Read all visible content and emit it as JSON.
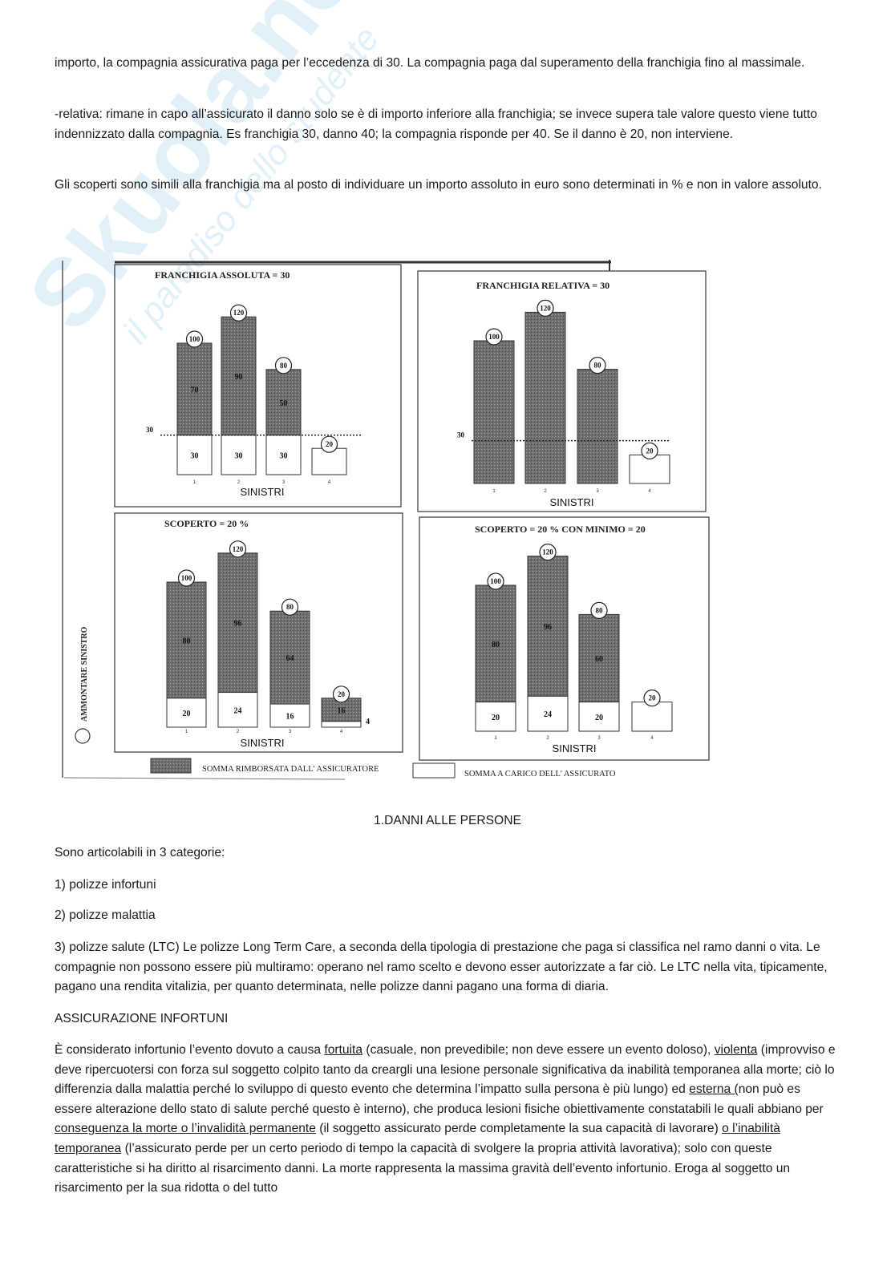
{
  "watermark": {
    "logo": "Skuola.net",
    "tagline": "il paradiso dello studente"
  },
  "paragraphs": {
    "p1": "importo, la compagnia assicurativa paga per l’eccedenza di 30. La compagnia paga dal superamento della franchigia fino al massimale.",
    "p2": "-relativa: rimane in capo all’assicurato il danno solo se è di importo inferiore alla franchigia; se invece supera tale valore questo viene tutto indennizzato dalla compagnia. Es franchigia 30, danno 40; la compagnia risponde per 40. Se il danno è 20, non interviene.",
    "p3": "Gli scoperti sono simili alla franchigia ma al posto di individuare un importo assoluto in euro sono determinati in % e non in valore assoluto.",
    "heading": "1.DANNI ALLE PERSONE",
    "p4": "Sono articolabili in 3 categorie:",
    "p5": "1) polizze infortuni",
    "p6": "2) polizze malattia",
    "p7": "3) polizze salute (LTC) Le polizze Long Term Care, a seconda della tipologia di prestazione che paga si classifica nel ramo danni o vita. Le compagnie non possono essere più multiramo: operano nel ramo scelto e devono esser autorizzate a far ciò. Le LTC nella vita, tipicamente, pagano una rendita vitalizia, per quanto determinata, nelle polizze danni pagano una forma di diaria.",
    "p8": "ASSICURAZIONE INFORTUNI",
    "p9": [
      {
        "t": "È considerato infortunio l’evento dovuto a causa ",
        "u": false
      },
      {
        "t": "fortuita",
        "u": true
      },
      {
        "t": " (casuale, non prevedibile; non deve essere un evento doloso), ",
        "u": false
      },
      {
        "t": "violenta",
        "u": true
      },
      {
        "t": " (improvviso e deve ripercuotersi con forza sul soggetto colpito tanto da creargli una lesione personale significativa da inabilità temporanea alla morte; ciò lo differenzia dalla malattia perché lo sviluppo di questo evento che determina l’impatto sulla persona è più lungo) ed ",
        "u": false
      },
      {
        "t": "esterna (",
        "u": true
      },
      {
        "t": "non può es essere alterazione dello stato di salute perché questo è interno), che produca lesioni fisiche obiettivamente constatabili le quali abbiano per ",
        "u": false
      },
      {
        "t": "conseguenza la morte o l’invalidità permanente",
        "u": true
      },
      {
        "t": " (il soggetto assicurato perde completamente la sua capacità di lavorare) ",
        "u": false
      },
      {
        "t": "o l’inabilità temporanea",
        "u": true
      },
      {
        "t": " (l’assicurato perde per un certo periodo di tempo la capacità di svolgere la propria attività lavorativa); solo con queste caratteristiche si ha diritto al risarcimento danni. La morte rappresenta la massima gravità dell’evento infortunio. Eroga al soggetto un risarcimento per la sua ridotta o del tutto",
        "u": false
      }
    ]
  },
  "figure": {
    "ylabel": "AMMONTARE SINISTRO",
    "legend": [
      {
        "label": "SOMMA RIMBORSATA DALL' ASSICURATORE",
        "color": "#6e6e6e"
      },
      {
        "label": "SOMMA A CARICO DELL' ASSICURATO",
        "color": "#ffffff"
      }
    ]
  },
  "chart_data": [
    {
      "type": "bar",
      "title": "FRANCHIGIA ASSOLUTA = 30",
      "xlabel": "SINISTRI",
      "categories": [
        "1",
        "2",
        "3",
        "4"
      ],
      "totals": [
        100,
        120,
        80,
        20
      ],
      "series": [
        {
          "name": "SOMMA RIMBORSATA DALL' ASSICURATORE",
          "values": [
            70,
            90,
            50,
            0
          ],
          "labels": [
            "70",
            "90",
            "50",
            ""
          ]
        },
        {
          "name": "SOMMA A CARICO DELL' ASSICURATO",
          "values": [
            30,
            30,
            30,
            20
          ],
          "labels": [
            "30",
            "30",
            "30",
            ""
          ]
        }
      ],
      "threshold": 30,
      "threshold_label": "30"
    },
    {
      "type": "bar",
      "title": "FRANCHIGIA RELATIVA = 30",
      "xlabel": "SINISTRI",
      "categories": [
        "1",
        "2",
        "3",
        "4"
      ],
      "totals": [
        100,
        120,
        80,
        20
      ],
      "series": [
        {
          "name": "SOMMA RIMBORSATA DALL' ASSICURATORE",
          "values": [
            100,
            120,
            80,
            0
          ],
          "labels": [
            "",
            "",
            "",
            ""
          ]
        },
        {
          "name": "SOMMA A CARICO DELL' ASSICURATO",
          "values": [
            0,
            0,
            0,
            20
          ],
          "labels": [
            "",
            "",
            "",
            ""
          ]
        }
      ],
      "threshold": 30,
      "threshold_label": "30"
    },
    {
      "type": "bar",
      "title": "SCOPERTO = 20 %",
      "xlabel": "SINISTRI",
      "categories": [
        "1",
        "2",
        "3",
        "4"
      ],
      "totals": [
        100,
        120,
        80,
        20
      ],
      "series": [
        {
          "name": "SOMMA RIMBORSATA DALL' ASSICURATORE",
          "values": [
            80,
            96,
            64,
            16
          ],
          "labels": [
            "80",
            "96",
            "64",
            "16"
          ]
        },
        {
          "name": "SOMMA A CARICO DELL' ASSICURATO",
          "values": [
            20,
            24,
            16,
            4
          ],
          "labels": [
            "20",
            "24",
            "16",
            "4"
          ]
        }
      ]
    },
    {
      "type": "bar",
      "title": "SCOPERTO = 20 % CON MINIMO = 20",
      "xlabel": "SINISTRI",
      "categories": [
        "1",
        "2",
        "3",
        "4"
      ],
      "totals": [
        100,
        120,
        80,
        20
      ],
      "series": [
        {
          "name": "SOMMA RIMBORSATA DALL' ASSICURATORE",
          "values": [
            80,
            96,
            60,
            0
          ],
          "labels": [
            "80",
            "96",
            "60",
            ""
          ]
        },
        {
          "name": "SOMMA A CARICO DELL' ASSICURATO",
          "values": [
            20,
            24,
            20,
            20
          ],
          "labels": [
            "20",
            "24",
            "20",
            ""
          ]
        }
      ]
    }
  ]
}
